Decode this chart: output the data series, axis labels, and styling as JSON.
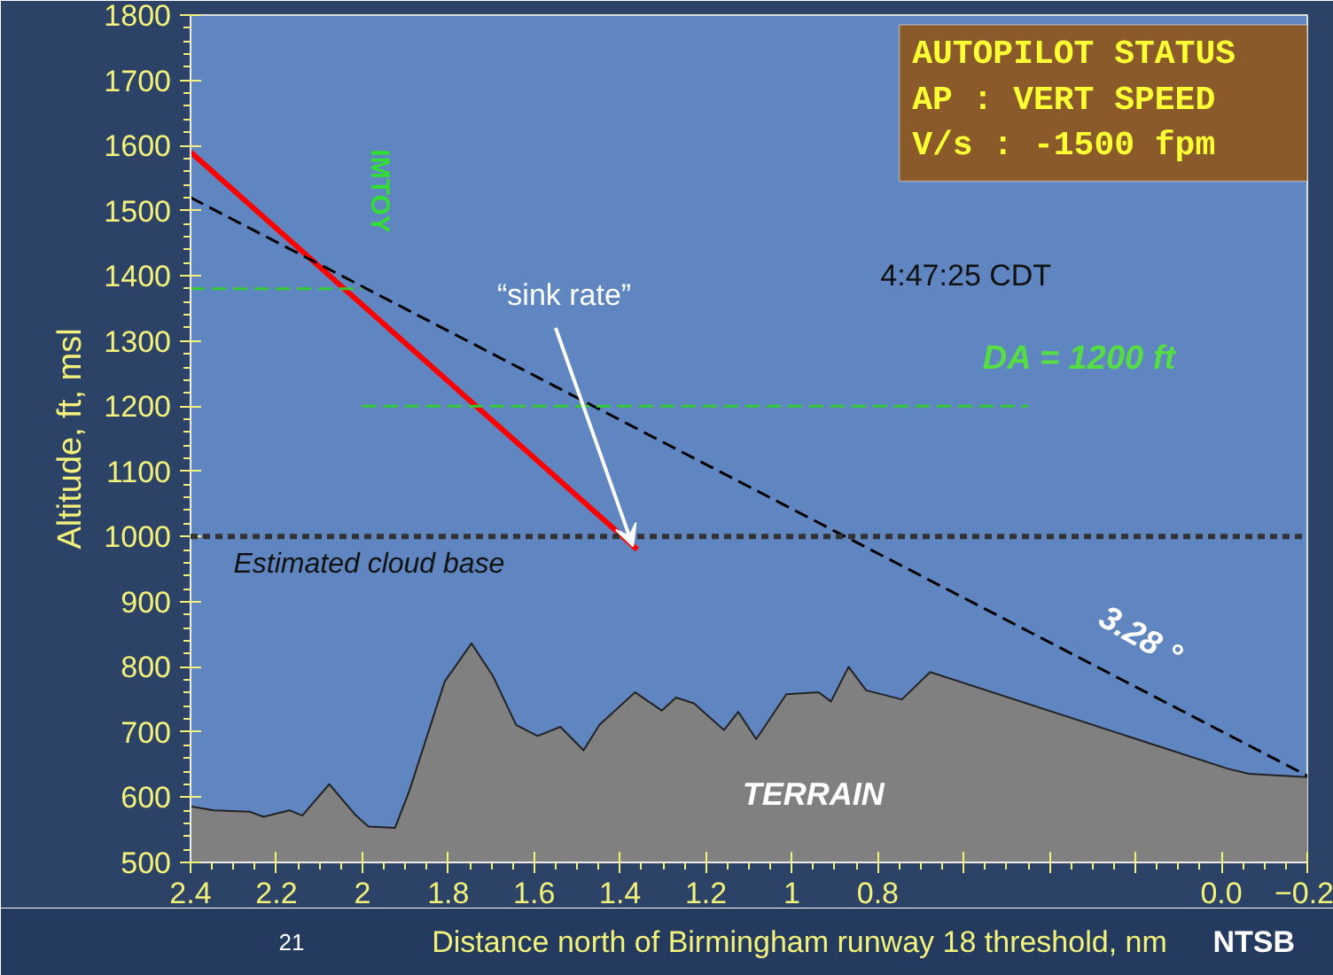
{
  "chart_data": {
    "type": "line",
    "xlabel": "Distance north of Birmingham runway 18 threshold, nm",
    "ylabel": "Altitude, ft, msl",
    "xlim": [
      2.4,
      -0.2
    ],
    "ylim": [
      500,
      1800
    ],
    "xticks": [
      2.4,
      2.2,
      2.0,
      1.8,
      1.6,
      1.4,
      1.2,
      1.0,
      0.8,
      {
        "value": 0.6,
        "label": null
      },
      {
        "value": 0.4,
        "label": null
      },
      {
        "value": 0.2,
        "label": null
      },
      {
        "value": 0.0,
        "label": "0.0"
      },
      -0.2
    ],
    "yticks": [
      500,
      600,
      700,
      800,
      900,
      1000,
      1100,
      1200,
      1300,
      1400,
      1500,
      1600,
      1700,
      1800
    ],
    "grid": false,
    "series": [
      {
        "type": "area",
        "color": "#808080",
        "x": [
          2.4,
          2.346,
          2.263,
          2.23,
          2.17,
          2.14,
          2.077,
          2.015,
          1.986,
          1.924,
          1.89,
          1.808,
          1.746,
          1.696,
          1.642,
          1.592,
          1.539,
          1.485,
          1.448,
          1.365,
          1.303,
          1.27,
          1.228,
          1.158,
          1.125,
          1.083,
          1.013,
          0.938,
          0.909,
          0.868,
          0.827,
          0.744,
          0.678,
          -0.014,
          -0.064,
          -0.2
        ],
        "values": [
          586,
          580,
          578,
          570,
          580,
          572,
          620,
          572,
          555,
          553,
          611,
          778,
          836,
          786,
          711,
          694,
          708,
          672,
          711,
          761,
          733,
          753,
          744,
          703,
          731,
          689,
          758,
          761,
          747,
          800,
          764,
          750,
          792,
          644,
          636,
          631
        ]
      },
      {
        "color": "#ff0000",
        "x": [
          2.4,
          1.36
        ],
        "values": [
          1590,
          980
        ]
      },
      {
        "color": "#000000",
        "line_style": "dashed",
        "x": [
          2.4,
          -0.2
        ],
        "values": [
          1520,
          633
        ]
      },
      {
        "color": "#33cc33",
        "line_style": "dashed",
        "x": [
          2.4,
          2.0
        ],
        "values": [
          1380,
          1380
        ]
      },
      {
        "color": "#33cc33",
        "line_style": "dashed",
        "x": [
          2.0,
          0.45
        ],
        "values": [
          1200,
          1200
        ]
      }
    ],
    "ref_lines": [
      {
        "axis": "y",
        "value": 1000,
        "label": "Estimated cloud base",
        "color": "#333333",
        "line_style": "dotted"
      }
    ],
    "annotations": [
      "AUTOPILOT STATUS",
      "AP : VERT SPEED",
      "V/s : -1500 fpm",
      "4:47:25 CDT",
      "DA = 1200 ft",
      "IMTOY",
      "3.28 °",
      "TERRAIN",
      "21",
      "NTSB",
      {
        "text": "“sink rate”",
        "x": 1.36,
        "y": 980
      }
    ]
  }
}
